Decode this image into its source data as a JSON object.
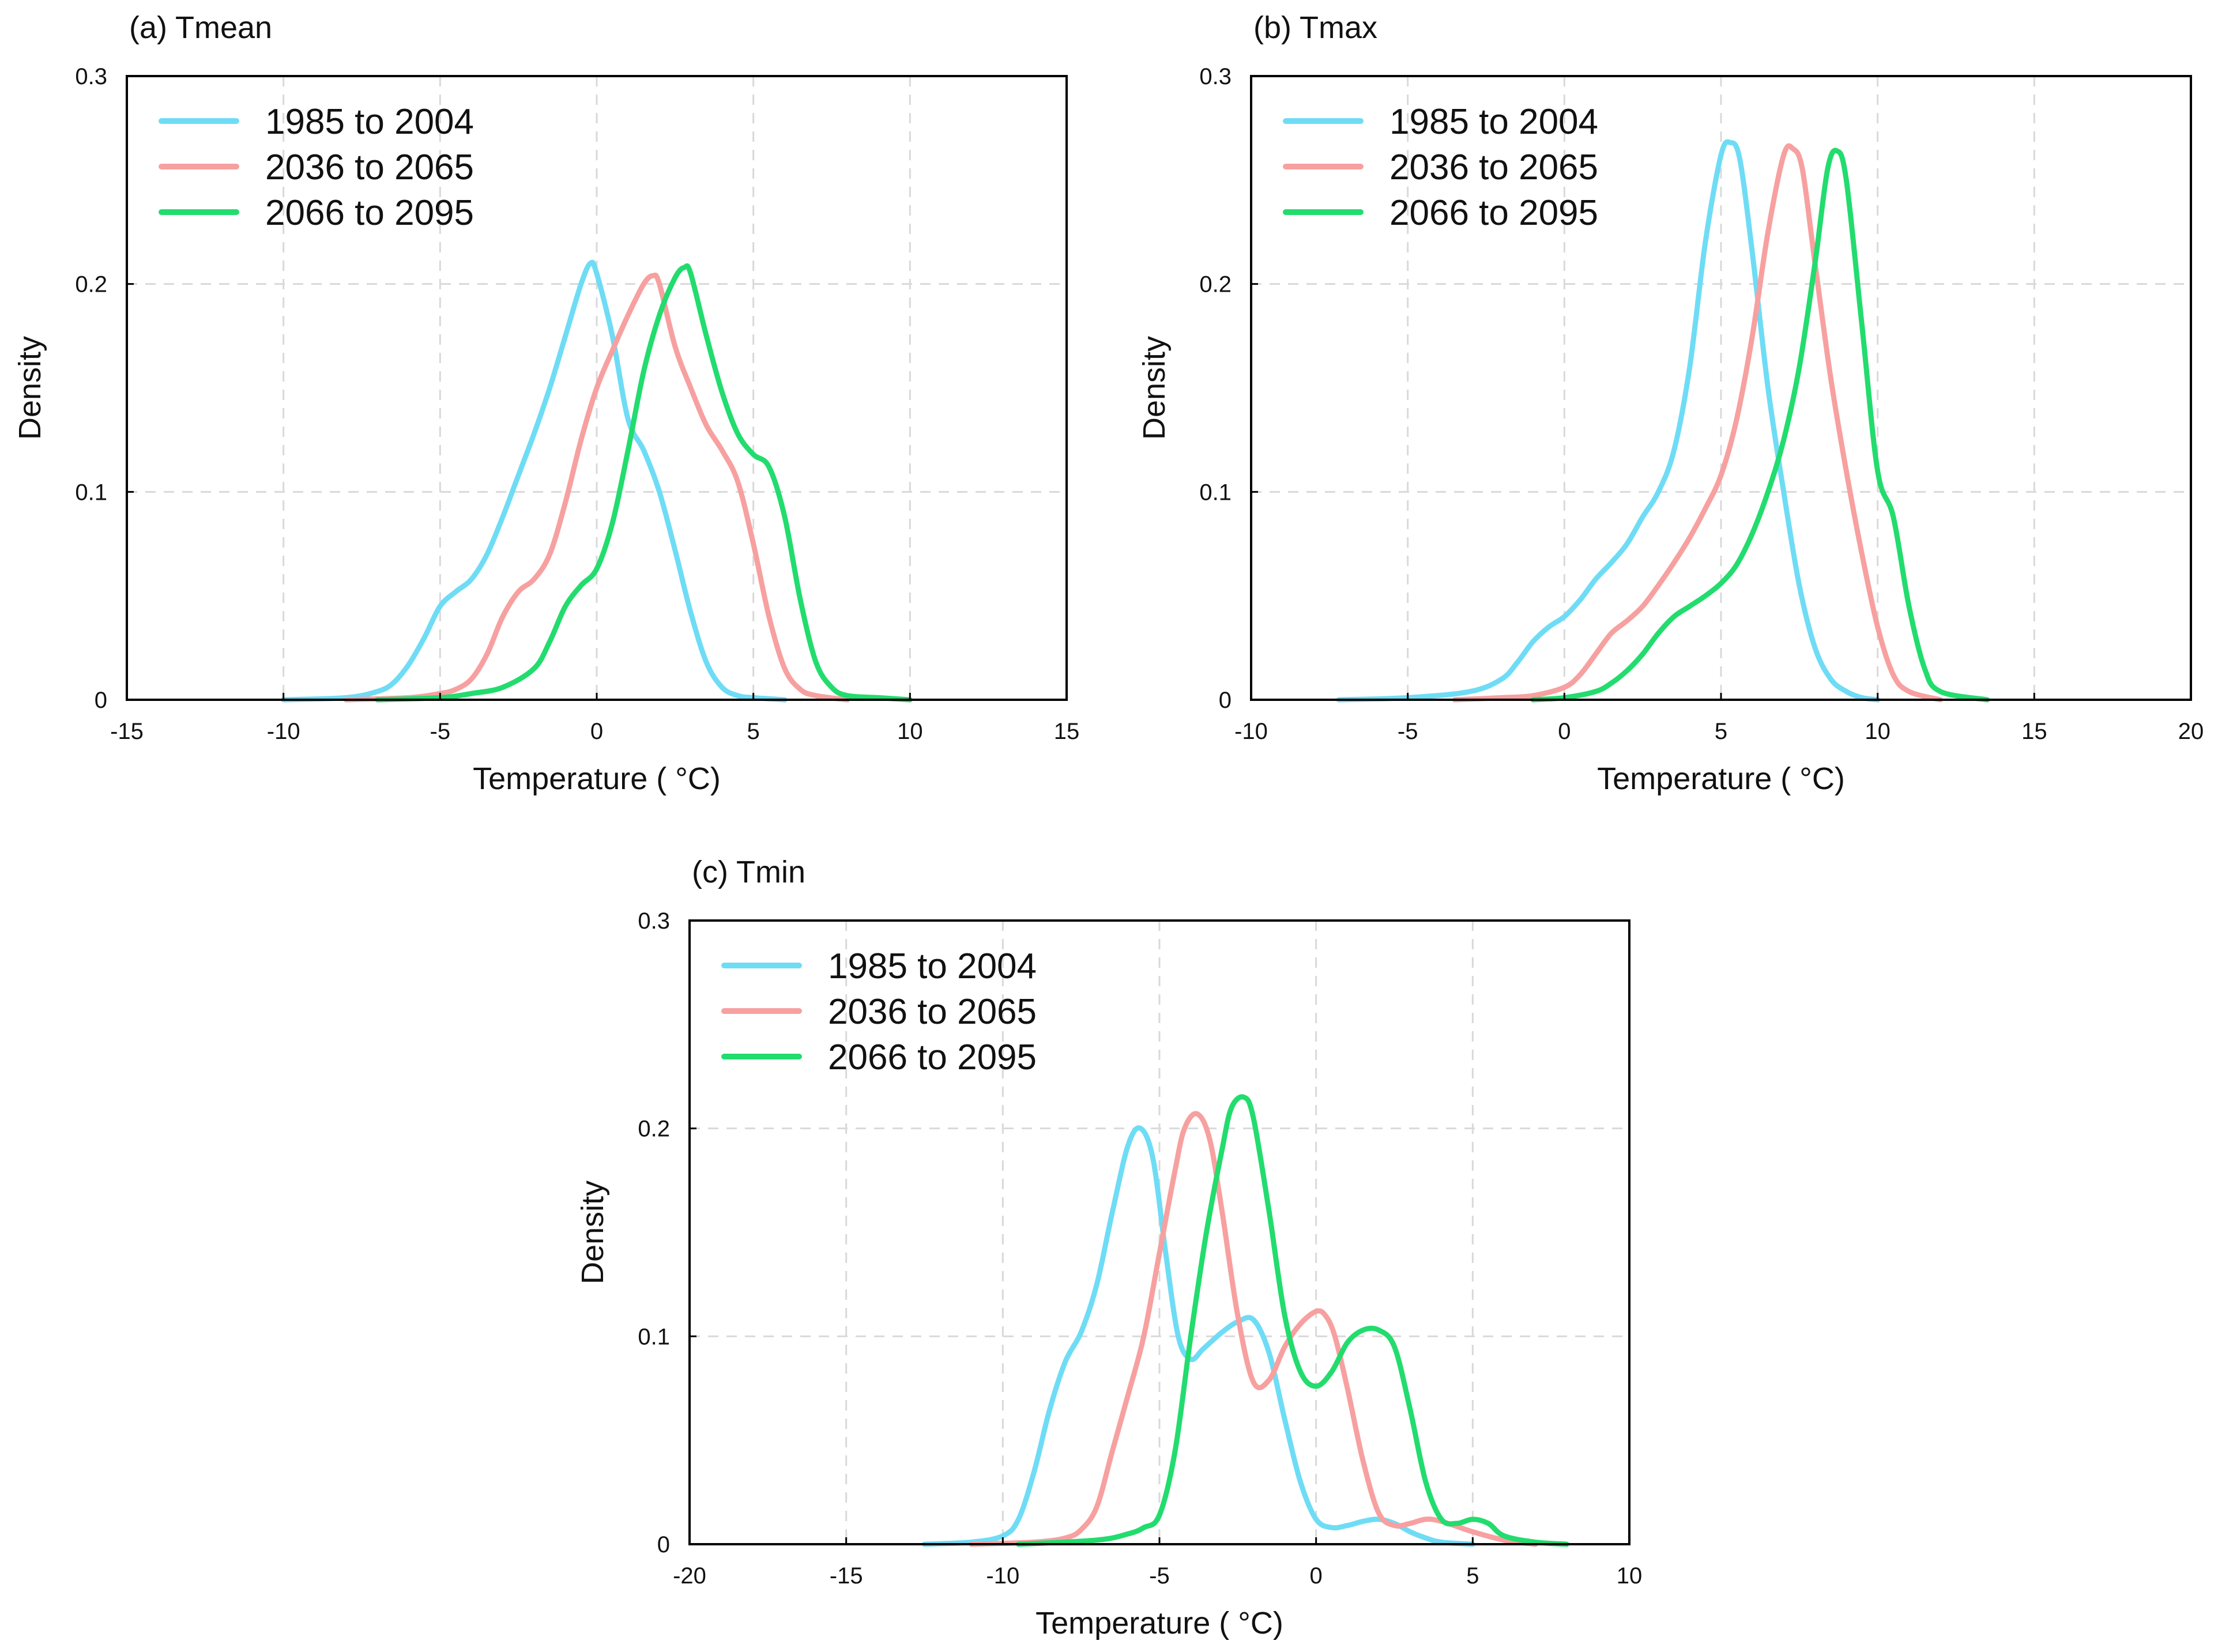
{
  "chart_data": [
    {
      "type": "line",
      "title": "(a) Tmean",
      "xlabel": "Temperature ( °C)",
      "ylabel": "Density",
      "xlim": [
        -15,
        15
      ],
      "ylim": [
        0,
        0.3
      ],
      "xticks": [
        -15,
        -10,
        -5,
        0,
        5,
        10,
        15
      ],
      "yticks": [
        0,
        0.1,
        0.2,
        0.3
      ],
      "xtick_labels": [
        "-15",
        "-10",
        "-5",
        "0",
        "5",
        "10",
        "15"
      ],
      "ytick_labels": [
        "0",
        "0.1",
        "0.2",
        "0.3"
      ],
      "grid": true,
      "legend_position": "top-left",
      "series": [
        {
          "name": "1985 to 2004",
          "color": "#6fdcf5",
          "x": [
            -10,
            -8,
            -7,
            -6.5,
            -6,
            -5.5,
            -5,
            -4.5,
            -4,
            -3.5,
            -3,
            -2.5,
            -2,
            -1.5,
            -1,
            -0.5,
            -0.2,
            0,
            0.5,
            1,
            1.5,
            2,
            2.5,
            3,
            3.5,
            4,
            4.5,
            5,
            6
          ],
          "values": [
            0,
            0.001,
            0.004,
            0.008,
            0.017,
            0.03,
            0.045,
            0.052,
            0.058,
            0.07,
            0.088,
            0.108,
            0.128,
            0.15,
            0.175,
            0.2,
            0.21,
            0.205,
            0.175,
            0.135,
            0.12,
            0.1,
            0.072,
            0.042,
            0.018,
            0.006,
            0.002,
            0.001,
            0
          ]
        },
        {
          "name": "2036 to 2065",
          "color": "#f7a0a0",
          "x": [
            -8,
            -6,
            -5,
            -4.5,
            -4,
            -3.5,
            -3,
            -2.5,
            -2,
            -1.5,
            -1,
            -0.5,
            0,
            0.5,
            1,
            1.5,
            1.8,
            2,
            2.5,
            3,
            3.5,
            4,
            4.5,
            5,
            5.5,
            6,
            6.5,
            7,
            8
          ],
          "values": [
            0,
            0.001,
            0.003,
            0.005,
            0.01,
            0.022,
            0.04,
            0.052,
            0.058,
            0.07,
            0.095,
            0.125,
            0.15,
            0.168,
            0.185,
            0.2,
            0.204,
            0.2,
            0.17,
            0.15,
            0.132,
            0.12,
            0.105,
            0.075,
            0.04,
            0.015,
            0.005,
            0.002,
            0
          ]
        },
        {
          "name": "2066 to 2095",
          "color": "#22dc6e",
          "x": [
            -7,
            -5,
            -4,
            -3,
            -2,
            -1.5,
            -1,
            -0.5,
            0,
            0.5,
            1,
            1.5,
            2,
            2.5,
            2.8,
            3,
            3.5,
            4,
            4.5,
            5,
            5.5,
            6,
            6.5,
            7,
            7.5,
            8,
            9,
            10
          ],
          "values": [
            0,
            0.001,
            0.003,
            0.006,
            0.015,
            0.028,
            0.045,
            0.055,
            0.063,
            0.085,
            0.12,
            0.158,
            0.185,
            0.203,
            0.208,
            0.205,
            0.175,
            0.148,
            0.128,
            0.118,
            0.112,
            0.088,
            0.048,
            0.018,
            0.006,
            0.002,
            0.001,
            0
          ]
        }
      ]
    },
    {
      "type": "line",
      "title": "(b) Tmax",
      "xlabel": "Temperature ( °C)",
      "ylabel": "Density",
      "xlim": [
        -10,
        20
      ],
      "ylim": [
        0,
        0.3
      ],
      "xticks": [
        -10,
        -5,
        0,
        5,
        10,
        15,
        20
      ],
      "yticks": [
        0,
        0.1,
        0.2,
        0.3
      ],
      "xtick_labels": [
        "-10",
        "-5",
        "0",
        "5",
        "10",
        "15",
        "20"
      ],
      "ytick_labels": [
        "0",
        "0.1",
        "0.2",
        "0.3"
      ],
      "grid": true,
      "legend_position": "top-left",
      "series": [
        {
          "name": "1985 to 2004",
          "color": "#6fdcf5",
          "x": [
            -7.2,
            -5,
            -3,
            -2,
            -1.5,
            -1,
            -0.5,
            0,
            0.5,
            1,
            1.5,
            2,
            2.5,
            3,
            3.5,
            4,
            4.5,
            5,
            5.3,
            5.6,
            6,
            6.5,
            7,
            7.5,
            8,
            8.5,
            9,
            9.5,
            10
          ],
          "values": [
            0,
            0.001,
            0.004,
            0.01,
            0.018,
            0.028,
            0.035,
            0.04,
            0.048,
            0.058,
            0.066,
            0.075,
            0.088,
            0.1,
            0.12,
            0.16,
            0.22,
            0.262,
            0.268,
            0.26,
            0.215,
            0.15,
            0.1,
            0.055,
            0.025,
            0.01,
            0.004,
            0.001,
            0
          ]
        },
        {
          "name": "2036 to 2065",
          "color": "#f7a0a0",
          "x": [
            -3.5,
            -2,
            -1,
            0,
            0.5,
            1,
            1.5,
            2,
            2.5,
            3,
            3.5,
            4,
            4.5,
            5,
            5.5,
            6,
            6.5,
            7,
            7.3,
            7.6,
            8,
            8.5,
            9,
            9.5,
            10,
            10.5,
            11,
            12
          ],
          "values": [
            0,
            0.001,
            0.002,
            0.006,
            0.012,
            0.022,
            0.032,
            0.038,
            0.045,
            0.055,
            0.066,
            0.078,
            0.092,
            0.108,
            0.135,
            0.175,
            0.225,
            0.262,
            0.265,
            0.255,
            0.21,
            0.155,
            0.11,
            0.07,
            0.035,
            0.012,
            0.004,
            0
          ]
        },
        {
          "name": "2066 to 2095",
          "color": "#22dc6e",
          "x": [
            -1,
            0,
            1,
            1.5,
            2,
            2.5,
            3,
            3.5,
            4,
            4.5,
            5,
            5.5,
            6,
            6.5,
            7,
            7.5,
            8,
            8.4,
            8.7,
            9,
            9.5,
            10,
            10.5,
            11,
            11.5,
            12,
            13.5
          ],
          "values": [
            0,
            0.001,
            0.004,
            0.008,
            0.014,
            0.022,
            0.032,
            0.04,
            0.045,
            0.05,
            0.056,
            0.065,
            0.08,
            0.1,
            0.125,
            0.16,
            0.21,
            0.255,
            0.264,
            0.25,
            0.18,
            0.11,
            0.088,
            0.045,
            0.015,
            0.004,
            0
          ]
        }
      ]
    },
    {
      "type": "line",
      "title": "(c) Tmin",
      "xlabel": "Temperature ( °C)",
      "ylabel": "Density",
      "xlim": [
        -20,
        10
      ],
      "ylim": [
        0,
        0.3
      ],
      "xticks": [
        -20,
        -15,
        -10,
        -5,
        0,
        5,
        10
      ],
      "yticks": [
        0,
        0.1,
        0.2,
        0.3
      ],
      "xtick_labels": [
        "-20",
        "-15",
        "-10",
        "-5",
        "0",
        "5",
        "10"
      ],
      "ytick_labels": [
        "0",
        "0.1",
        "0.2",
        "0.3"
      ],
      "grid": true,
      "legend_position": "top-left",
      "series": [
        {
          "name": "1985 to 2004",
          "color": "#6fdcf5",
          "x": [
            -12.5,
            -11,
            -10,
            -9.5,
            -9,
            -8.5,
            -8,
            -7.5,
            -7,
            -6.5,
            -6,
            -5.6,
            -5.2,
            -4.8,
            -4.4,
            -4,
            -3.6,
            -3,
            -2.5,
            -2,
            -1.5,
            -1,
            -0.5,
            0,
            0.5,
            1,
            1.5,
            2,
            2.5,
            3,
            3.5,
            4,
            5
          ],
          "values": [
            0,
            0.001,
            0.004,
            0.012,
            0.035,
            0.065,
            0.088,
            0.102,
            0.125,
            0.16,
            0.192,
            0.2,
            0.185,
            0.14,
            0.1,
            0.089,
            0.094,
            0.102,
            0.107,
            0.108,
            0.092,
            0.06,
            0.03,
            0.012,
            0.008,
            0.009,
            0.011,
            0.012,
            0.01,
            0.006,
            0.003,
            0.001,
            0
          ]
        },
        {
          "name": "2036 to 2065",
          "color": "#f7a0a0",
          "x": [
            -11,
            -9,
            -8,
            -7.5,
            -7,
            -6.5,
            -6,
            -5.5,
            -5,
            -4.5,
            -4.2,
            -3.8,
            -3.4,
            -3,
            -2.5,
            -2,
            -1.5,
            -1,
            -0.5,
            0,
            0.3,
            0.6,
            1,
            1.5,
            2,
            2.5,
            3,
            3.5,
            4,
            5,
            6,
            7
          ],
          "values": [
            0,
            0.001,
            0.003,
            0.007,
            0.018,
            0.045,
            0.072,
            0.1,
            0.14,
            0.18,
            0.2,
            0.207,
            0.195,
            0.16,
            0.11,
            0.078,
            0.079,
            0.095,
            0.106,
            0.112,
            0.11,
            0.1,
            0.075,
            0.04,
            0.015,
            0.009,
            0.01,
            0.012,
            0.011,
            0.006,
            0.002,
            0
          ]
        },
        {
          "name": "2066 to 2095",
          "color": "#22dc6e",
          "x": [
            -9.5,
            -7,
            -6,
            -5.5,
            -5,
            -4.5,
            -4,
            -3.5,
            -3,
            -2.7,
            -2.3,
            -2,
            -1.5,
            -1,
            -0.5,
            0,
            0.5,
            1,
            1.5,
            2,
            2.5,
            3,
            3.5,
            4,
            4.5,
            5,
            5.5,
            6,
            7,
            8
          ],
          "values": [
            0,
            0.002,
            0.005,
            0.008,
            0.014,
            0.045,
            0.1,
            0.15,
            0.19,
            0.21,
            0.215,
            0.205,
            0.16,
            0.11,
            0.083,
            0.076,
            0.083,
            0.097,
            0.103,
            0.103,
            0.095,
            0.065,
            0.03,
            0.012,
            0.01,
            0.012,
            0.01,
            0.004,
            0.001,
            0
          ]
        }
      ]
    }
  ]
}
